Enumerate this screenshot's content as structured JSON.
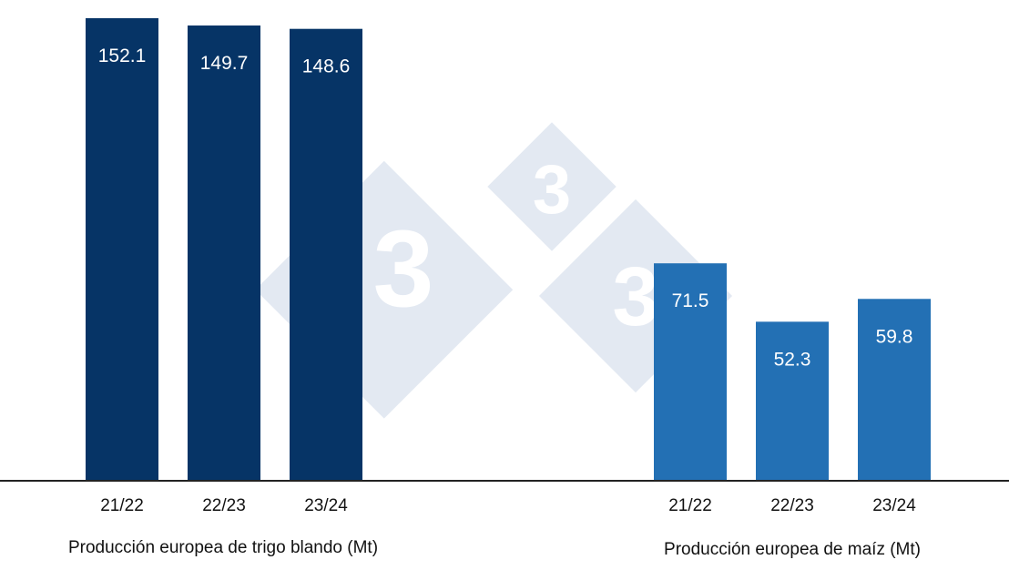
{
  "colors": {
    "wheat": "#063466",
    "maize": "#2370b4",
    "baseline": "#222222",
    "watermark": "#e3e9f2"
  },
  "watermark": {
    "text": "3"
  },
  "chart_data": [
    {
      "type": "bar",
      "title": "Producción europea de trigo blando (Mt)",
      "categories": [
        "21/22",
        "22/23",
        "23/24"
      ],
      "values": [
        152.1,
        149.7,
        148.6
      ],
      "labels": [
        "152.1",
        "149.7",
        "148.6"
      ],
      "color": "#063466",
      "ylim": [
        0,
        152.1
      ]
    },
    {
      "type": "bar",
      "title": "Producción europea de maíz (Mt)",
      "categories": [
        "21/22",
        "22/23",
        "23/24"
      ],
      "values": [
        71.5,
        52.3,
        59.8
      ],
      "labels": [
        "71.5",
        "52.3",
        "59.8"
      ],
      "color": "#2370b4",
      "ylim": [
        0,
        152.1
      ]
    }
  ]
}
